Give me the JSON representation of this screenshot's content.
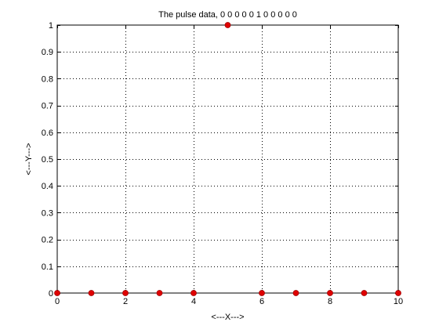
{
  "chart_data": {
    "type": "scatter",
    "title": "The pulse data, 0 0 0 0 0 1 0 0 0 0 0",
    "xlabel": "<---X--->",
    "ylabel": "<---Y--->",
    "xlim": [
      0,
      10
    ],
    "ylim": [
      0,
      1
    ],
    "x_ticks": [
      0,
      2,
      4,
      6,
      8,
      10
    ],
    "x_tick_labels": [
      "0",
      "2",
      "4",
      "6",
      "8",
      "10"
    ],
    "y_ticks": [
      0,
      0.1,
      0.2,
      0.3,
      0.4,
      0.5,
      0.6,
      0.7,
      0.8,
      0.9,
      1
    ],
    "y_tick_labels": [
      "0",
      "0.1",
      "0.2",
      "0.3",
      "0.4",
      "0.5",
      "0.6",
      "0.7",
      "0.8",
      "0.9",
      "1"
    ],
    "grid": true,
    "legend": false,
    "marker_color": "#e00000",
    "marker_edge_color": "#a00000",
    "series": [
      {
        "x": [
          0,
          1,
          2,
          3,
          4,
          5,
          6,
          7,
          8,
          9,
          10
        ],
        "y": [
          0,
          0,
          0,
          0,
          0,
          1,
          0,
          0,
          0,
          0,
          0
        ]
      }
    ]
  }
}
